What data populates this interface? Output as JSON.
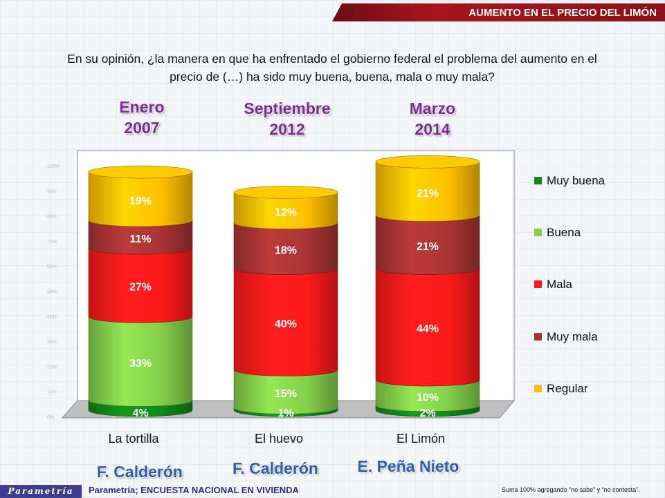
{
  "header": {
    "title": "AUMENTO EN EL PRECIO DEL LIMÓN"
  },
  "question": {
    "line1": "En su opinión, ¿la manera en que ha enfrentado el gobierno federal el problema del aumento en el",
    "line2": "precio de (…) ha sido muy buena, buena, mala o muy mala?"
  },
  "periods": [
    {
      "month": "Enero",
      "year": "2007"
    },
    {
      "month": "Septiembre",
      "year": "2012"
    },
    {
      "month": "Marzo",
      "year": "2014"
    }
  ],
  "presidents": [
    "F. Calderón",
    "F. Calderón",
    "E. Peña Nieto"
  ],
  "colors": {
    "Muy buena": "#0f8a1a",
    "Buena": "#84d04a",
    "Mala": "#ff1a1a",
    "Muy mala": "#a93434",
    "Regular": "#ffc000"
  },
  "chart_data": {
    "type": "bar",
    "stacked": true,
    "categories": [
      "La tortilla",
      "El huevo",
      "El Limón"
    ],
    "series": [
      {
        "name": "Muy buena",
        "values": [
          4,
          1,
          2
        ]
      },
      {
        "name": "Buena",
        "values": [
          33,
          15,
          10
        ]
      },
      {
        "name": "Mala",
        "values": [
          27,
          40,
          44
        ]
      },
      {
        "name": "Muy mala",
        "values": [
          11,
          18,
          21
        ]
      },
      {
        "name": "Regular",
        "values": [
          19,
          12,
          21
        ]
      }
    ],
    "ylim": [
      0,
      100
    ],
    "yticks": [
      "0%",
      "10%",
      "20%",
      "30%",
      "40%",
      "50%",
      "60%",
      "70%",
      "80%",
      "90%",
      "100%"
    ],
    "legend": [
      "Muy buena",
      "Buena",
      "Mala",
      "Muy mala",
      "Regular"
    ],
    "legend_position": "right"
  },
  "footer": {
    "logo": "Parametría",
    "source": "Parametría; ENCUESTA NACIONAL  EN VIVIENDA",
    "note": "Suma 100%  agregando “no sabe” y “no contesta”."
  }
}
